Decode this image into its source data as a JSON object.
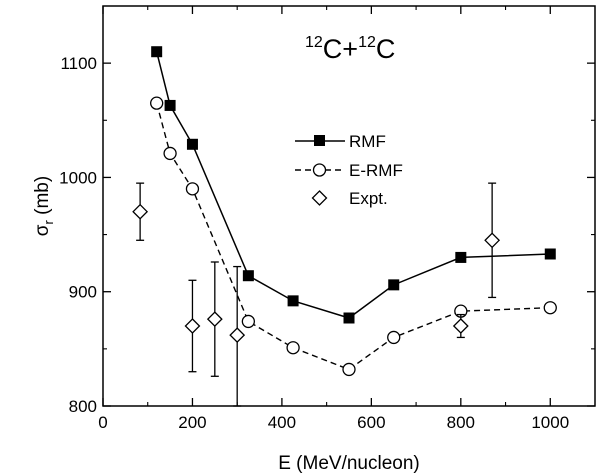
{
  "chart_data": {
    "type": "line",
    "title": {
      "part1_sup": "12",
      "part1": "C+",
      "part2_sup": "12",
      "part2": "C"
    },
    "xlabel": "E (MeV/nucleon)",
    "ylabel": {
      "main": "σ",
      "sub": "r",
      "unit": " (mb)"
    },
    "xlim": [
      0,
      1100
    ],
    "ylim": [
      800,
      1150
    ],
    "xticks": [
      0,
      200,
      400,
      600,
      800,
      1000
    ],
    "yticks": [
      800,
      900,
      1000,
      1100
    ],
    "legend_position": "center-right",
    "series": [
      {
        "name": "RMF",
        "style": "solid line with filled squares",
        "color": "#000000",
        "points": [
          {
            "x": 120,
            "y": 1110
          },
          {
            "x": 150,
            "y": 1063
          },
          {
            "x": 200,
            "y": 1029
          },
          {
            "x": 325,
            "y": 914
          },
          {
            "x": 425,
            "y": 892
          },
          {
            "x": 550,
            "y": 877
          },
          {
            "x": 650,
            "y": 906
          },
          {
            "x": 800,
            "y": 930
          },
          {
            "x": 1000,
            "y": 933
          }
        ]
      },
      {
        "name": "E-RMF",
        "style": "dashed line with open circles",
        "color": "#000000",
        "points": [
          {
            "x": 120,
            "y": 1065
          },
          {
            "x": 150,
            "y": 1021
          },
          {
            "x": 200,
            "y": 990
          },
          {
            "x": 325,
            "y": 874
          },
          {
            "x": 425,
            "y": 851
          },
          {
            "x": 550,
            "y": 832
          },
          {
            "x": 650,
            "y": 860
          },
          {
            "x": 800,
            "y": 883
          },
          {
            "x": 1000,
            "y": 886
          }
        ]
      },
      {
        "name": "Expt.",
        "style": "open diamonds with vertical error bars",
        "color": "#000000",
        "points": [
          {
            "x": 83,
            "y": 970,
            "err_low": 945,
            "err_high": 995
          },
          {
            "x": 200,
            "y": 870,
            "err_low": 830,
            "err_high": 910
          },
          {
            "x": 250,
            "y": 876,
            "err_low": 826,
            "err_high": 926
          },
          {
            "x": 300,
            "y": 862,
            "err_low": 800,
            "err_high": 922
          },
          {
            "x": 800,
            "y": 870,
            "err_low": 860,
            "err_high": 880
          },
          {
            "x": 870,
            "y": 945,
            "err_low": 895,
            "err_high": 995
          }
        ]
      }
    ]
  }
}
